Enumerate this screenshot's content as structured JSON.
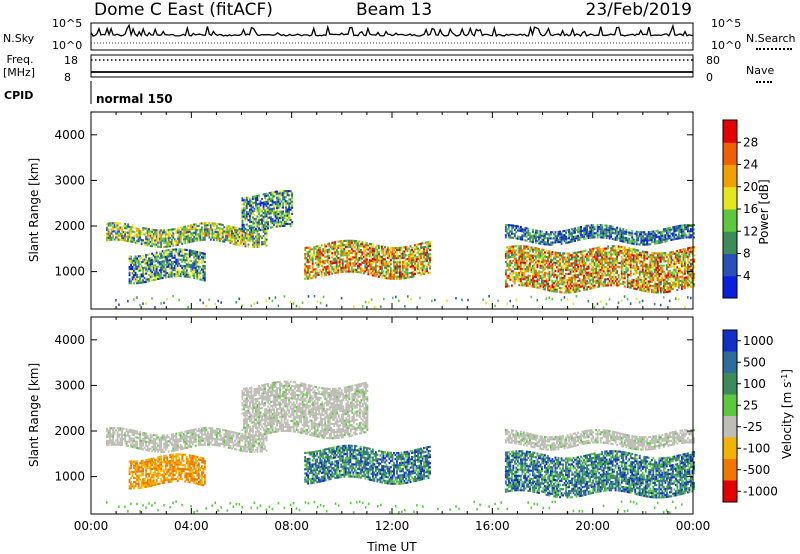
{
  "header": {
    "station": "Dome C East (fitACF)",
    "beam": "Beam 13",
    "date": "23/Feb/2019"
  },
  "strip": {
    "nsky_label": "N.Sky",
    "nsearch_label": "N.Search",
    "noise_ticks_left": [
      "10^5",
      "10^0"
    ],
    "noise_ticks_right": [
      "10^5",
      "10^0"
    ],
    "freq_label": "Freq.",
    "freq_unit": "[MHz]",
    "freq_ticks": [
      "18",
      "8"
    ],
    "nave_label": "Nave",
    "nave_ticks": [
      "80",
      "0"
    ],
    "cpid_label": "CPID",
    "cpid_value": "normal 150"
  },
  "chart_data": [
    {
      "type": "heatmap",
      "panel": "power",
      "ylabel": "Slant Range [km]",
      "ylim": [
        180,
        4500
      ],
      "yticks": [
        "1000",
        "2000",
        "3000",
        "4000"
      ],
      "xlabel": "",
      "xlim": [
        0,
        24
      ],
      "colorbar_label": "Power [dB]",
      "colorbar_ticks": [
        "4",
        "8",
        "12",
        "16",
        "20",
        "24",
        "28"
      ],
      "colorbar_range": [
        0,
        32
      ],
      "colors": [
        "#0a1ee0",
        "#2850b8",
        "#3c8c5a",
        "#5cc840",
        "#e6e61e",
        "#f2a000",
        "#f06000",
        "#e40000"
      ],
      "echo_regions": [
        {
          "t_start": 0.6,
          "t_end": 7.0,
          "range_km": [
            1600,
            2000
          ],
          "level": "mid-high"
        },
        {
          "t_start": 6.0,
          "t_end": 8.0,
          "range_km": [
            1900,
            2700
          ],
          "level": "mid"
        },
        {
          "t_start": 1.5,
          "t_end": 4.5,
          "range_km": [
            800,
            1400
          ],
          "level": "mid"
        },
        {
          "t_start": 8.5,
          "t_end": 13.5,
          "range_km": [
            900,
            1600
          ],
          "level": "high"
        },
        {
          "t_start": 16.5,
          "t_end": 24.0,
          "range_km": [
            600,
            1500
          ],
          "level": "high"
        },
        {
          "t_start": 16.5,
          "t_end": 24.0,
          "range_km": [
            1650,
            1950
          ],
          "level": "low-mid"
        }
      ]
    },
    {
      "type": "heatmap",
      "panel": "velocity",
      "ylabel": "Slant Range [km]",
      "ylim": [
        180,
        4500
      ],
      "yticks": [
        "1000",
        "2000",
        "3000",
        "4000"
      ],
      "xlabel": "Time UT",
      "xlim": [
        0,
        24
      ],
      "xticks": [
        "00:00",
        "04:00",
        "08:00",
        "12:00",
        "16:00",
        "20:00",
        "00:00"
      ],
      "colorbar_label": "Velocity [m s^-1]",
      "colorbar_ticks": [
        "1000",
        "500",
        "100",
        "25",
        "-25",
        "-100",
        "-500",
        "-1000"
      ],
      "colors": [
        "#1030c8",
        "#2e6c9c",
        "#3c8c5a",
        "#5cc840",
        "#bebeb6",
        "#f2b400",
        "#f07800",
        "#e40000"
      ],
      "echo_regions": [
        {
          "t_start": 0.6,
          "t_end": 7.0,
          "range_km": [
            1600,
            2000
          ],
          "level": "ground-scatter"
        },
        {
          "t_start": 6.0,
          "t_end": 11.0,
          "range_km": [
            1900,
            3000
          ],
          "level": "ground-scatter"
        },
        {
          "t_start": 1.5,
          "t_end": 4.5,
          "range_km": [
            800,
            1400
          ],
          "level": "negative"
        },
        {
          "t_start": 8.5,
          "t_end": 13.5,
          "range_km": [
            900,
            1600
          ],
          "level": "positive"
        },
        {
          "t_start": 16.5,
          "t_end": 24.0,
          "range_km": [
            600,
            1500
          ],
          "level": "positive"
        },
        {
          "t_start": 16.5,
          "t_end": 24.0,
          "range_km": [
            1650,
            1950
          ],
          "level": "ground-scatter"
        }
      ]
    }
  ]
}
